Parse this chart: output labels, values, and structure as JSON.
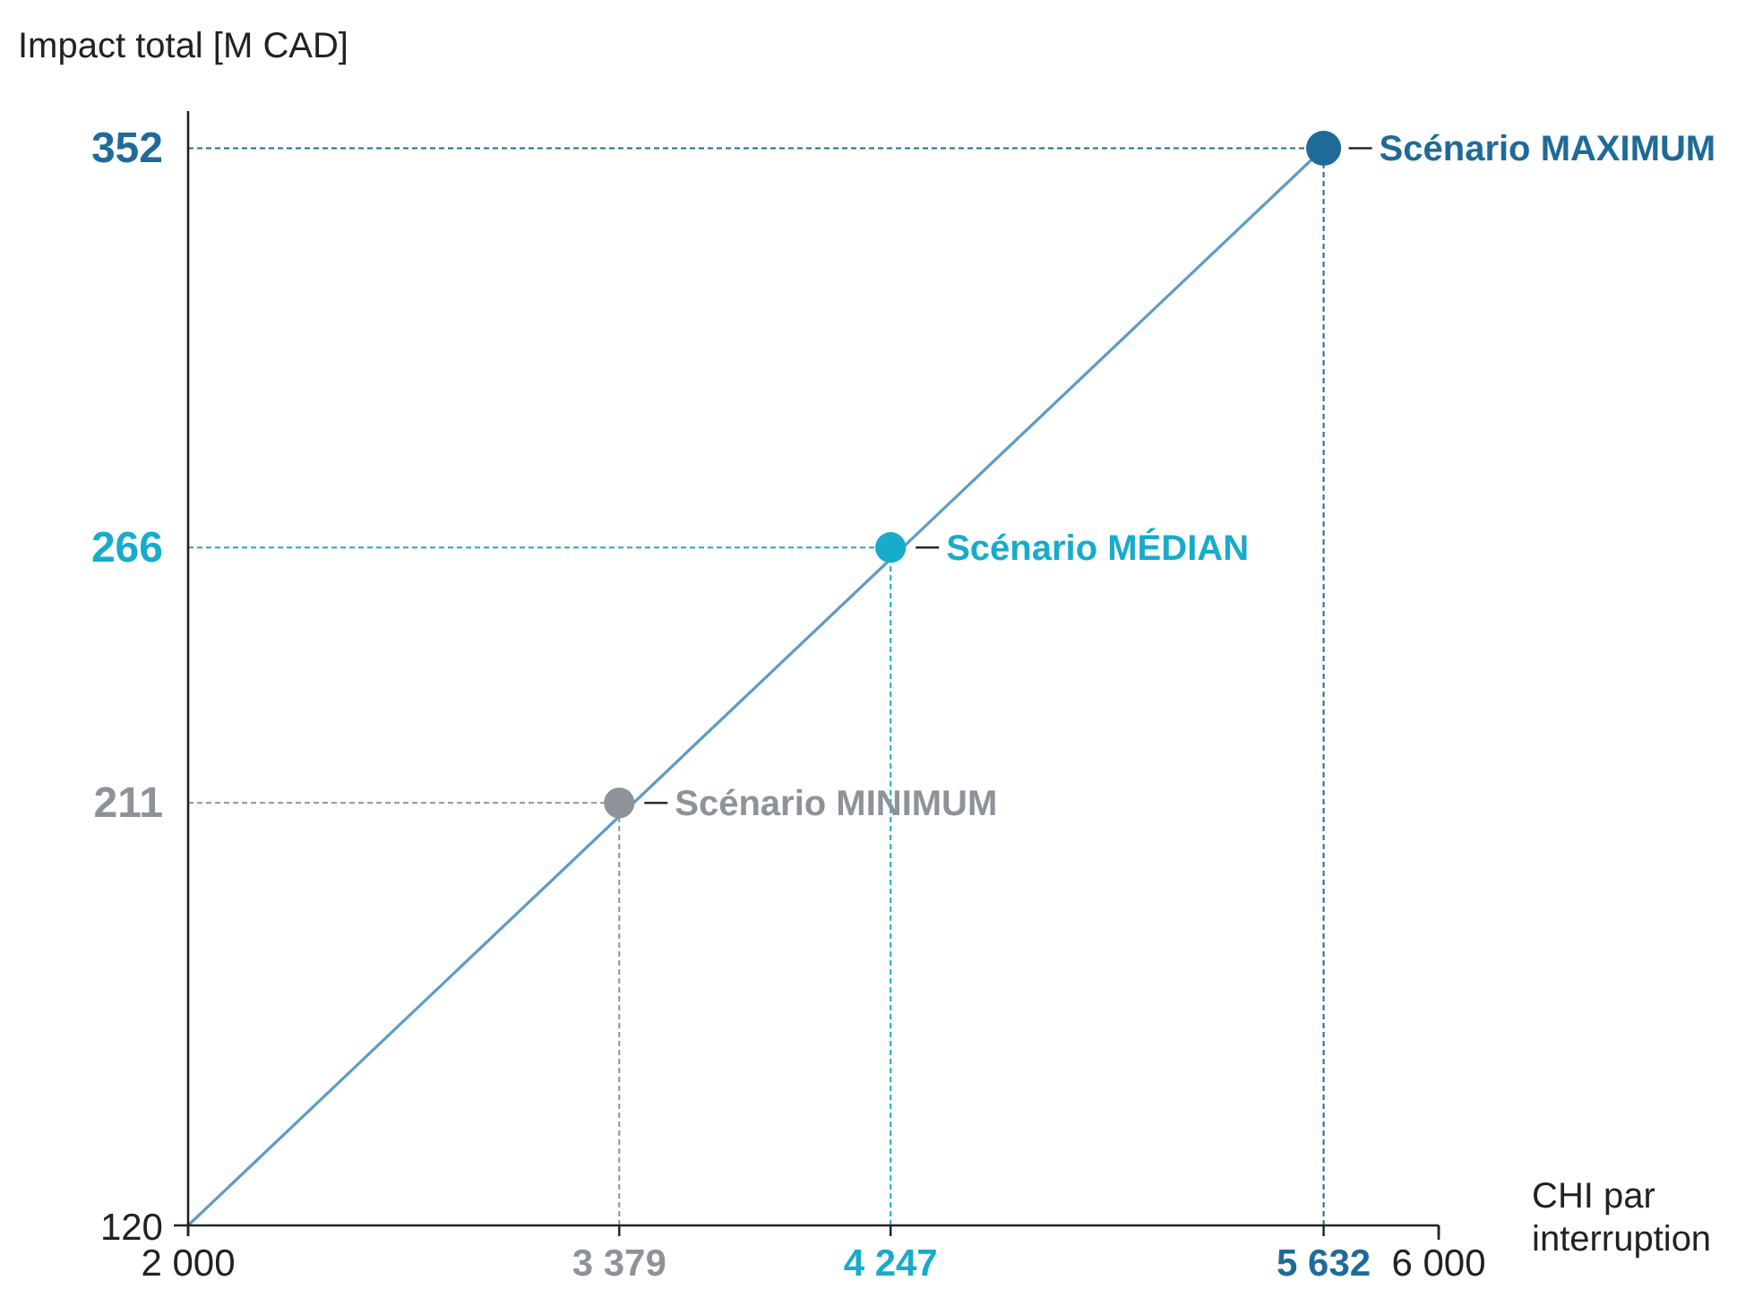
{
  "chart_data": {
    "type": "scatter",
    "xlabel": "CHI par interruption",
    "ylabel": "Impact total [M CAD]",
    "xlim": [
      2000,
      6000
    ],
    "ylim": [
      120,
      360
    ],
    "xticks": [
      {
        "value": 2000,
        "label": "2 000"
      },
      {
        "value": 3379,
        "label": "3 379"
      },
      {
        "value": 4247,
        "label": "4 247"
      },
      {
        "value": 5632,
        "label": "5 632"
      },
      {
        "value": 6000,
        "label": "6 000"
      }
    ],
    "yticks": [
      120,
      211,
      266,
      352
    ],
    "legend": false,
    "marker": "circle",
    "ref_lines": [
      {
        "axis": "y",
        "value": 211,
        "color": "#8e9399",
        "line_style": "dashed"
      },
      {
        "axis": "x",
        "value": 3379,
        "color": "#8e9399",
        "line_style": "dashed"
      },
      {
        "axis": "y",
        "value": 266,
        "color": "#18abcb",
        "line_style": "dashed"
      },
      {
        "axis": "x",
        "value": 4247,
        "color": "#18abcb",
        "line_style": "dashed"
      },
      {
        "axis": "y",
        "value": 352,
        "color": "#1f6b98",
        "line_style": "dashed"
      },
      {
        "axis": "x",
        "value": 5632,
        "color": "#1f6b98",
        "line_style": "dashed"
      }
    ],
    "series": [
      {
        "type": "line",
        "color": "#5b9cc4",
        "marker": "none",
        "x": [
          2000,
          5632
        ],
        "values": [
          120,
          352
        ]
      },
      {
        "name": "Scénario MINIMUM",
        "color": "#8e9399",
        "x": [
          3379
        ],
        "values": [
          211
        ]
      },
      {
        "name": "Scénario MÉDIAN",
        "color": "#18abcb",
        "x": [
          4247
        ],
        "values": [
          266
        ]
      },
      {
        "name": "Scénario MAXIMUM",
        "color": "#1f6b98",
        "x": [
          5632
        ],
        "values": [
          352
        ]
      }
    ]
  }
}
